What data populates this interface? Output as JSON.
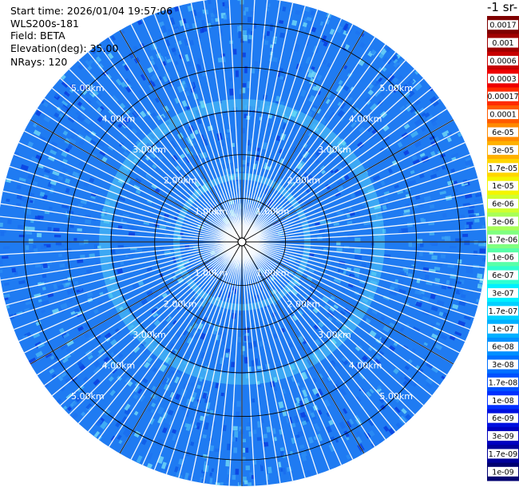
{
  "info": {
    "start_time": "Start time: 2026/01/04 19:57:06",
    "instrument": "WLS200s-181",
    "field": "Field: BETA",
    "elevation": "Elevation(deg): 35.00",
    "nrays": "NRays: 120"
  },
  "colorbar": {
    "title_fragment": "-1 sr-",
    "labels": [
      "0.0017",
      "0.001",
      "0.0006",
      "0.0003",
      "0.00017",
      "0.0001",
      "6e-05",
      "3e-05",
      "1.7e-05",
      "1e-05",
      "6e-06",
      "3e-06",
      "1.7e-06",
      "1e-06",
      "6e-07",
      "3e-07",
      "1.7e-07",
      "1e-07",
      "6e-08",
      "3e-08",
      "1.7e-08",
      "1e-08",
      "6e-09",
      "3e-09",
      "1.7e-09",
      "1e-09"
    ],
    "colors": [
      "#7f0000",
      "#a00000",
      "#c80000",
      "#ee0000",
      "#ff2a00",
      "#ff5a00",
      "#ff8a00",
      "#ffb000",
      "#ffd600",
      "#f5f500",
      "#d0ff2f",
      "#a8ff58",
      "#80ff80",
      "#58ffa8",
      "#2fffd0",
      "#00f0ff",
      "#00d0ff",
      "#00b0ff",
      "#0090ff",
      "#0070ff",
      "#0050ff",
      "#0030ff",
      "#0010e0",
      "#0000c0",
      "#00009a",
      "#000070"
    ]
  },
  "chart_data": {
    "type": "heatmap",
    "projection": "polar (PPI scan)",
    "max_range_km": 5.6,
    "range_rings_km": [
      1,
      2,
      3,
      4,
      5
    ],
    "range_ring_labels": [
      "1.00km",
      "2.00km",
      "3.00km",
      "4.00km",
      "5.00km"
    ],
    "nrays": 120,
    "dominant_value_range": [
      1e-08,
      1.7e-07
    ],
    "field": "BETA",
    "elevation_deg": 35.0
  }
}
